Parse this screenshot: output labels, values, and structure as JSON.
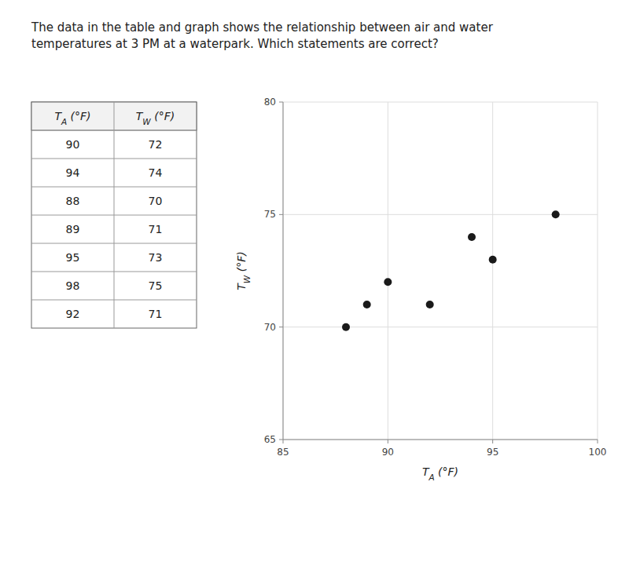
{
  "chart_data": {
    "type": "scatter",
    "title": "The data in the table and graph shows the relationship between air and water\ntemperatures at 3 PM at a waterpark. Which statements are correct?",
    "x_label": "TA (°F)",
    "y_label": "TW (°F)",
    "x": [
      90,
      94,
      88,
      89,
      95,
      98,
      92
    ],
    "values": [
      72,
      74,
      70,
      71,
      73,
      75,
      71
    ],
    "color": "#1a1a1a",
    "xlim": [
      85,
      100
    ],
    "ylim": [
      65,
      80
    ],
    "xticks": [
      85,
      90,
      95,
      100
    ],
    "yticks": [
      65,
      70,
      75,
      80
    ],
    "grid": true
  }
}
